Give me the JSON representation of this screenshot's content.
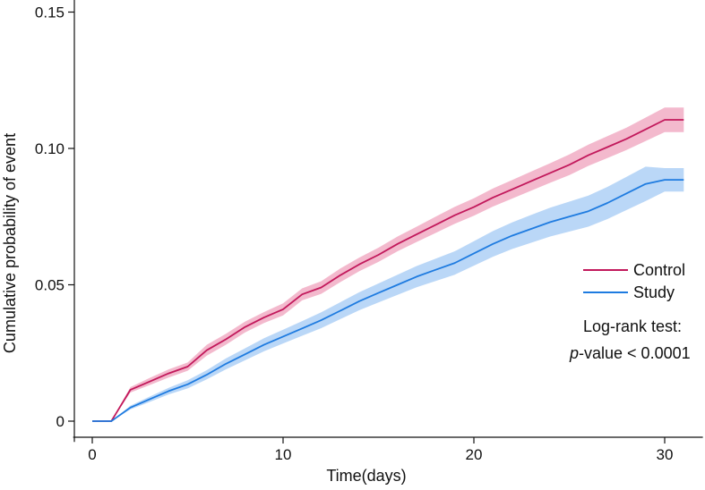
{
  "chart_data": {
    "type": "line",
    "title": "",
    "xlabel": "Time(days)",
    "ylabel": "Cumulative probability of event",
    "xlim": [
      -1,
      32
    ],
    "ylim": [
      -0.005,
      0.155
    ],
    "xticks": [
      0,
      10,
      20,
      30
    ],
    "xtick_labels": [
      "0",
      "10",
      "20",
      "30"
    ],
    "yticks": [
      0,
      0.05,
      0.1,
      0.15
    ],
    "ytick_labels": [
      "0",
      "0.05",
      "0.10",
      "0.15"
    ],
    "grid": false,
    "legend_position": "right",
    "x": [
      0,
      1,
      2,
      3,
      4,
      5,
      6,
      7,
      8,
      9,
      10,
      11,
      12,
      13,
      14,
      15,
      16,
      17,
      18,
      19,
      20,
      21,
      22,
      23,
      24,
      25,
      26,
      27,
      28,
      29,
      30,
      31
    ],
    "series": [
      {
        "name": "Control",
        "color": "#c2185b",
        "band_color": "#f0a8c0",
        "values": [
          0,
          0,
          0.0115,
          0.0145,
          0.0175,
          0.02,
          0.026,
          0.03,
          0.0345,
          0.038,
          0.041,
          0.0465,
          0.049,
          0.0535,
          0.0575,
          0.061,
          0.065,
          0.0685,
          0.072,
          0.0755,
          0.0785,
          0.082,
          0.085,
          0.088,
          0.091,
          0.094,
          0.0975,
          0.1005,
          0.1035,
          0.107,
          0.1105,
          0.1105
        ],
        "lower": [
          0,
          0,
          0.0105,
          0.0132,
          0.016,
          0.0185,
          0.024,
          0.028,
          0.0325,
          0.036,
          0.0388,
          0.0443,
          0.0467,
          0.051,
          0.055,
          0.0584,
          0.0623,
          0.0657,
          0.069,
          0.0724,
          0.0753,
          0.0787,
          0.0816,
          0.0845,
          0.0874,
          0.0902,
          0.0936,
          0.0965,
          0.0994,
          0.1027,
          0.106,
          0.106
        ],
        "upper": [
          0,
          0,
          0.0125,
          0.0158,
          0.019,
          0.0215,
          0.028,
          0.032,
          0.0365,
          0.04,
          0.0432,
          0.0487,
          0.0513,
          0.056,
          0.06,
          0.0636,
          0.0677,
          0.0713,
          0.075,
          0.0786,
          0.0817,
          0.0853,
          0.0884,
          0.0915,
          0.0946,
          0.0978,
          0.1014,
          0.1045,
          0.1076,
          0.1113,
          0.115,
          0.115
        ]
      },
      {
        "name": "Study",
        "color": "#1e7be0",
        "band_color": "#a9cdf5",
        "values": [
          0,
          0,
          0.005,
          0.008,
          0.011,
          0.0135,
          0.017,
          0.021,
          0.0245,
          0.028,
          0.031,
          0.034,
          0.037,
          0.0405,
          0.044,
          0.047,
          0.05,
          0.053,
          0.0555,
          0.058,
          0.0615,
          0.065,
          0.068,
          0.0705,
          0.073,
          0.075,
          0.077,
          0.08,
          0.0835,
          0.087,
          0.0885,
          0.0885
        ],
        "lower": [
          0,
          0,
          0.0043,
          0.007,
          0.0098,
          0.012,
          0.0153,
          0.019,
          0.0223,
          0.0256,
          0.0285,
          0.0313,
          0.0341,
          0.0374,
          0.0407,
          0.0435,
          0.0463,
          0.0491,
          0.0514,
          0.0537,
          0.057,
          0.0603,
          0.0631,
          0.0654,
          0.0677,
          0.0695,
          0.0713,
          0.0741,
          0.0774,
          0.0807,
          0.0842,
          0.0842
        ],
        "upper": [
          0,
          0,
          0.0057,
          0.009,
          0.0122,
          0.015,
          0.0187,
          0.023,
          0.0267,
          0.0304,
          0.0335,
          0.0367,
          0.0399,
          0.0436,
          0.0473,
          0.0505,
          0.0537,
          0.0569,
          0.0596,
          0.0623,
          0.066,
          0.0697,
          0.0729,
          0.0756,
          0.0783,
          0.0805,
          0.0827,
          0.0859,
          0.0896,
          0.0933,
          0.0928,
          0.0928
        ]
      }
    ],
    "annotation": {
      "line1": "Log-rank test:",
      "p_italic": "p",
      "p_rest": "-value < 0.0001"
    }
  }
}
